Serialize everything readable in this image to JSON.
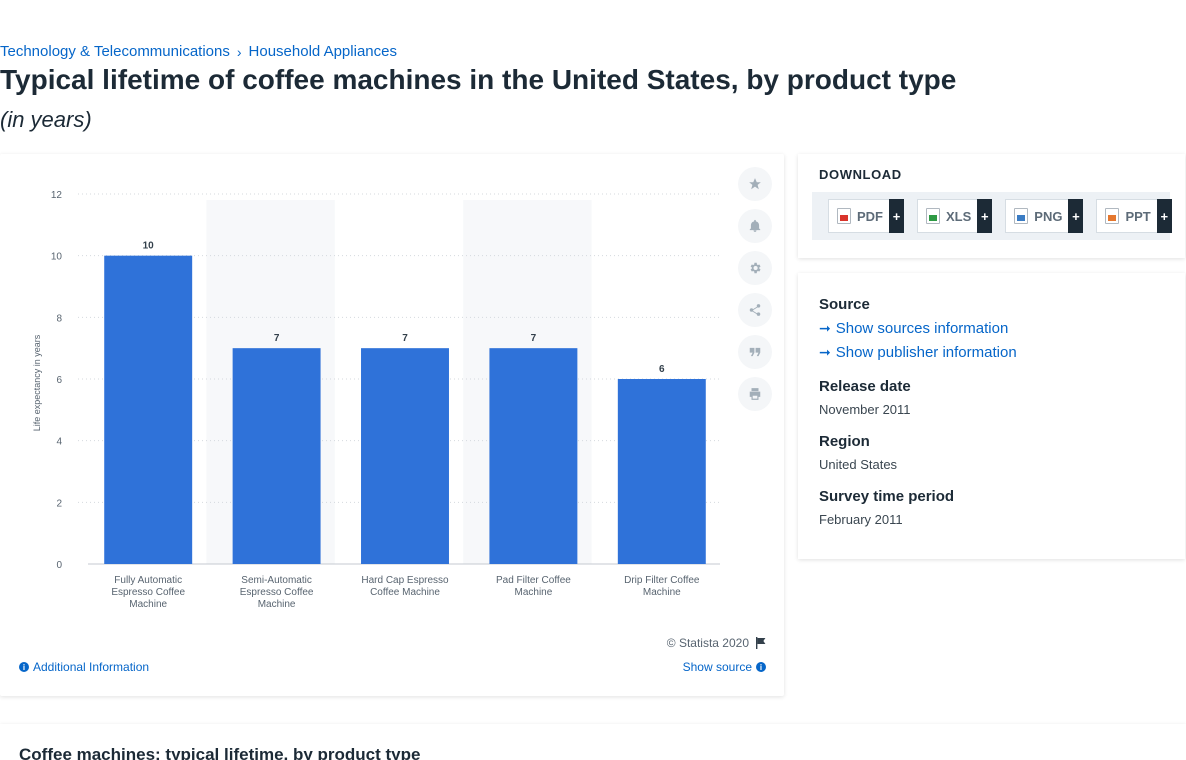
{
  "breadcrumb": {
    "category": "Technology & Telecommunications",
    "subcategory": "Household Appliances"
  },
  "page": {
    "title": "Typical lifetime of coffee machines in the United States, by product type",
    "subtitle": "(in years)"
  },
  "chart_data": {
    "type": "bar",
    "categories": [
      [
        "Fully Automatic",
        "Espresso Coffee",
        "Machine"
      ],
      [
        "Semi-Automatic",
        "Espresso Coffee",
        "Machine"
      ],
      [
        "Hard Cap Espresso",
        "Coffee Machine"
      ],
      [
        "Pad Filter Coffee",
        "Machine"
      ],
      [
        "Drip Filter Coffee",
        "Machine"
      ]
    ],
    "values": [
      10,
      7,
      7,
      7,
      6
    ],
    "ylabel": "Life expectancy in years",
    "ylim": [
      0,
      12
    ],
    "yticks": [
      0,
      2,
      4,
      6,
      8,
      10,
      12
    ],
    "grid": true,
    "bar_color": "#2f72d9",
    "alt_band_color": "#f7f8fa"
  },
  "chart_footer": {
    "copyright": "© Statista 2020",
    "additional_info": "Additional Information",
    "show_source": "Show source"
  },
  "tools": [
    "star-icon",
    "bell-icon",
    "gear-icon",
    "share-icon",
    "quote-icon",
    "print-icon"
  ],
  "download": {
    "title": "DOWNLOAD",
    "buttons": [
      {
        "label": "PDF",
        "color": "#d9342b"
      },
      {
        "label": "XLS",
        "color": "#2e9a44"
      },
      {
        "label": "PNG",
        "color": "#3b7cc4"
      },
      {
        "label": "PPT",
        "color": "#e5772e"
      }
    ],
    "plus": "+"
  },
  "source_panel": {
    "source_label": "Source",
    "show_sources": "Show sources information",
    "show_publisher": "Show publisher information",
    "release_label": "Release date",
    "release_value": "November 2011",
    "region_label": "Region",
    "region_value": "United States",
    "survey_label": "Survey time period",
    "survey_value": "February 2011"
  },
  "bottom": {
    "title": "Coffee machines: typical lifetime, by product type"
  }
}
